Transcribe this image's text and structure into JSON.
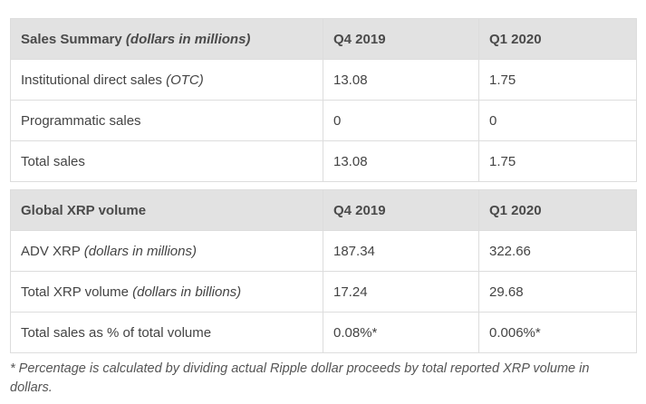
{
  "sales_summary": {
    "header": {
      "title": "Sales Summary",
      "title_note": "(dollars in millions)",
      "col1": "Q4 2019",
      "col2": "Q1 2020"
    },
    "rows": [
      {
        "label": "Institutional direct sales",
        "note": "(OTC)",
        "q4": "13.08",
        "q1": "1.75"
      },
      {
        "label": "Programmatic sales",
        "note": "",
        "q4": "0",
        "q1": "0"
      },
      {
        "label": "Total sales",
        "note": "",
        "q4": "13.08",
        "q1": "1.75"
      }
    ]
  },
  "global_volume": {
    "header": {
      "title": "Global XRP volume",
      "col1": "Q4 2019",
      "col2": "Q1 2020"
    },
    "rows": [
      {
        "label": "ADV XRP",
        "note": "(dollars in millions)",
        "q4": "187.34",
        "q1": "322.66"
      },
      {
        "label": "Total XRP volume",
        "note": "(dollars in billions)",
        "q4": "17.24",
        "q1": "29.68"
      },
      {
        "label": "Total sales as % of total volume",
        "note": "",
        "q4": "0.08%*",
        "q1": "0.006%*"
      }
    ]
  },
  "footnote": "* Percentage is calculated by dividing actual Ripple dollar proceeds by total reported XRP volume in dollars."
}
